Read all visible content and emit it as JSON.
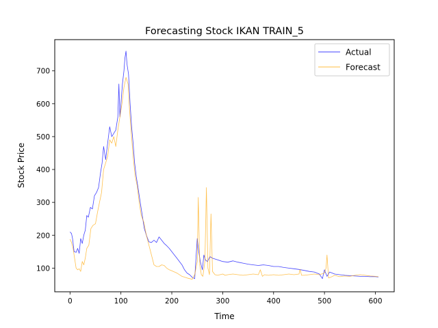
{
  "chart_data": {
    "type": "line",
    "title": "Forecasting Stock IKAN TRAIN_5",
    "xlabel": "Time",
    "ylabel": "Stock Price",
    "xlim": [
      -30,
      637
    ],
    "ylim": [
      28,
      795
    ],
    "xticks": [
      0,
      100,
      200,
      300,
      400,
      500,
      600
    ],
    "yticks": [
      100,
      200,
      300,
      400,
      500,
      600,
      700
    ],
    "grid": false,
    "legend": "top-right",
    "series": [
      {
        "name": "Actual",
        "color": "#0000ff",
        "points": [
          [
            0,
            210
          ],
          [
            3,
            205
          ],
          [
            5,
            190
          ],
          [
            8,
            150
          ],
          [
            12,
            148
          ],
          [
            15,
            160
          ],
          [
            18,
            145
          ],
          [
            21,
            190
          ],
          [
            24,
            175
          ],
          [
            27,
            200
          ],
          [
            30,
            215
          ],
          [
            33,
            260
          ],
          [
            36,
            255
          ],
          [
            40,
            285
          ],
          [
            44,
            280
          ],
          [
            48,
            320
          ],
          [
            52,
            330
          ],
          [
            56,
            345
          ],
          [
            60,
            390
          ],
          [
            63,
            420
          ],
          [
            66,
            470
          ],
          [
            70,
            430
          ],
          [
            74,
            480
          ],
          [
            78,
            530
          ],
          [
            82,
            500
          ],
          [
            86,
            510
          ],
          [
            90,
            520
          ],
          [
            94,
            560
          ],
          [
            96,
            660
          ],
          [
            98,
            560
          ],
          [
            100,
            600
          ],
          [
            103,
            660
          ],
          [
            106,
            700
          ],
          [
            108,
            740
          ],
          [
            110,
            760
          ],
          [
            112,
            720
          ],
          [
            115,
            690
          ],
          [
            118,
            600
          ],
          [
            121,
            530
          ],
          [
            124,
            480
          ],
          [
            127,
            420
          ],
          [
            130,
            380
          ],
          [
            134,
            340
          ],
          [
            138,
            300
          ],
          [
            142,
            260
          ],
          [
            146,
            220
          ],
          [
            150,
            200
          ],
          [
            155,
            180
          ],
          [
            160,
            178
          ],
          [
            165,
            185
          ],
          [
            170,
            178
          ],
          [
            175,
            195
          ],
          [
            180,
            185
          ],
          [
            185,
            175
          ],
          [
            190,
            168
          ],
          [
            195,
            160
          ],
          [
            200,
            150
          ],
          [
            205,
            140
          ],
          [
            210,
            130
          ],
          [
            215,
            120
          ],
          [
            220,
            110
          ],
          [
            225,
            95
          ],
          [
            230,
            85
          ],
          [
            235,
            80
          ],
          [
            240,
            72
          ],
          [
            245,
            68
          ],
          [
            250,
            190
          ],
          [
            253,
            150
          ],
          [
            256,
            120
          ],
          [
            260,
            95
          ],
          [
            263,
            140
          ],
          [
            266,
            125
          ],
          [
            270,
            120
          ],
          [
            275,
            135
          ],
          [
            280,
            130
          ],
          [
            290,
            125
          ],
          [
            300,
            120
          ],
          [
            310,
            118
          ],
          [
            320,
            122
          ],
          [
            330,
            118
          ],
          [
            340,
            115
          ],
          [
            350,
            112
          ],
          [
            360,
            110
          ],
          [
            370,
            108
          ],
          [
            380,
            110
          ],
          [
            390,
            108
          ],
          [
            400,
            105
          ],
          [
            410,
            105
          ],
          [
            420,
            102
          ],
          [
            430,
            100
          ],
          [
            440,
            98
          ],
          [
            450,
            96
          ],
          [
            460,
            93
          ],
          [
            470,
            90
          ],
          [
            480,
            88
          ],
          [
            490,
            82
          ],
          [
            496,
            68
          ],
          [
            500,
            95
          ],
          [
            505,
            75
          ],
          [
            510,
            88
          ],
          [
            520,
            82
          ],
          [
            530,
            80
          ],
          [
            540,
            78
          ],
          [
            550,
            77
          ],
          [
            560,
            76
          ],
          [
            570,
            75
          ],
          [
            580,
            75
          ],
          [
            590,
            74
          ],
          [
            600,
            74
          ],
          [
            606,
            73
          ]
        ]
      },
      {
        "name": "Forecast",
        "color": "#ffa500",
        "points": [
          [
            0,
            188
          ],
          [
            3,
            178
          ],
          [
            6,
            160
          ],
          [
            9,
            130
          ],
          [
            12,
            100
          ],
          [
            15,
            95
          ],
          [
            18,
            98
          ],
          [
            21,
            90
          ],
          [
            24,
            120
          ],
          [
            27,
            110
          ],
          [
            30,
            130
          ],
          [
            33,
            160
          ],
          [
            37,
            170
          ],
          [
            41,
            220
          ],
          [
            45,
            230
          ],
          [
            50,
            235
          ],
          [
            54,
            270
          ],
          [
            58,
            300
          ],
          [
            62,
            330
          ],
          [
            66,
            400
          ],
          [
            70,
            420
          ],
          [
            74,
            440
          ],
          [
            78,
            490
          ],
          [
            82,
            480
          ],
          [
            86,
            500
          ],
          [
            90,
            470
          ],
          [
            94,
            520
          ],
          [
            98,
            560
          ],
          [
            102,
            600
          ],
          [
            106,
            650
          ],
          [
            110,
            680
          ],
          [
            114,
            660
          ],
          [
            117,
            580
          ],
          [
            120,
            520
          ],
          [
            124,
            440
          ],
          [
            128,
            380
          ],
          [
            132,
            350
          ],
          [
            136,
            300
          ],
          [
            140,
            260
          ],
          [
            145,
            240
          ],
          [
            150,
            200
          ],
          [
            155,
            170
          ],
          [
            160,
            140
          ],
          [
            165,
            110
          ],
          [
            170,
            105
          ],
          [
            175,
            105
          ],
          [
            180,
            110
          ],
          [
            185,
            108
          ],
          [
            190,
            100
          ],
          [
            195,
            95
          ],
          [
            200,
            92
          ],
          [
            210,
            85
          ],
          [
            220,
            75
          ],
          [
            230,
            70
          ],
          [
            240,
            66
          ],
          [
            245,
            80
          ],
          [
            250,
            120
          ],
          [
            252,
            315
          ],
          [
            255,
            110
          ],
          [
            258,
            80
          ],
          [
            261,
            75
          ],
          [
            265,
            120
          ],
          [
            268,
            345
          ],
          [
            271,
            100
          ],
          [
            274,
            80
          ],
          [
            277,
            265
          ],
          [
            280,
            90
          ],
          [
            285,
            80
          ],
          [
            290,
            78
          ],
          [
            300,
            82
          ],
          [
            305,
            78
          ],
          [
            310,
            80
          ],
          [
            320,
            82
          ],
          [
            330,
            80
          ],
          [
            340,
            78
          ],
          [
            350,
            80
          ],
          [
            360,
            82
          ],
          [
            370,
            80
          ],
          [
            374,
            95
          ],
          [
            378,
            75
          ],
          [
            382,
            80
          ],
          [
            390,
            78
          ],
          [
            400,
            80
          ],
          [
            410,
            78
          ],
          [
            420,
            80
          ],
          [
            430,
            82
          ],
          [
            440,
            80
          ],
          [
            450,
            82
          ],
          [
            452,
            96
          ],
          [
            455,
            78
          ],
          [
            460,
            78
          ],
          [
            470,
            80
          ],
          [
            480,
            82
          ],
          [
            490,
            80
          ],
          [
            500,
            85
          ],
          [
            503,
            100
          ],
          [
            505,
            140
          ],
          [
            508,
            70
          ],
          [
            512,
            72
          ],
          [
            520,
            78
          ],
          [
            530,
            74
          ],
          [
            540,
            76
          ],
          [
            550,
            75
          ],
          [
            560,
            78
          ],
          [
            570,
            80
          ],
          [
            580,
            78
          ],
          [
            590,
            76
          ],
          [
            600,
            75
          ],
          [
            606,
            74
          ]
        ]
      }
    ]
  }
}
